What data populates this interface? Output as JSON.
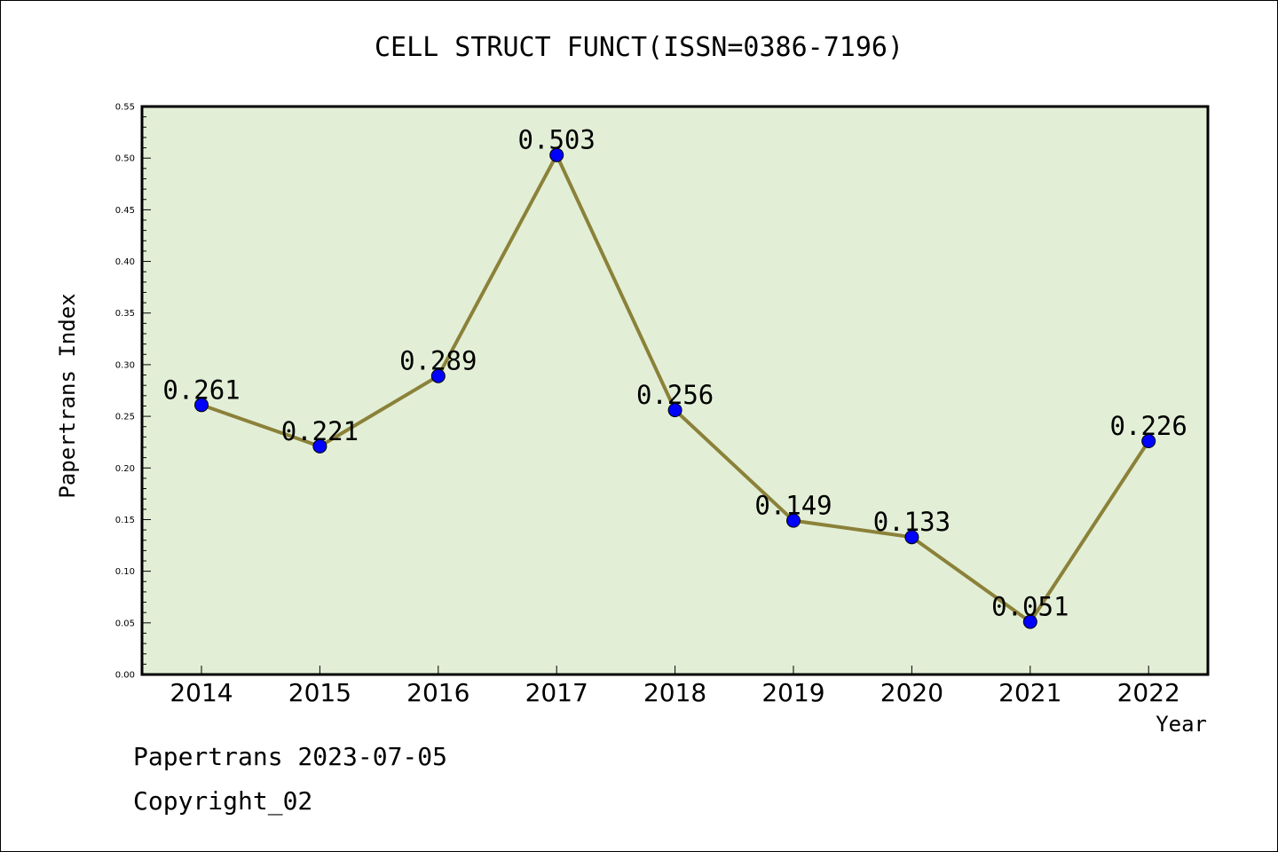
{
  "chart_data": {
    "type": "line",
    "title": "CELL STRUCT FUNCT(ISSN=0386-7196)",
    "xlabel": "Year",
    "ylabel": "Papertrans Index",
    "categories": [
      "2014",
      "2015",
      "2016",
      "2017",
      "2018",
      "2019",
      "2020",
      "2021",
      "2022"
    ],
    "series": [
      {
        "values": [
          0.261,
          0.221,
          0.289,
          0.503,
          0.256,
          0.149,
          0.133,
          0.051,
          0.226
        ]
      }
    ],
    "data_labels": [
      "0.261",
      "0.221",
      "0.289",
      "0.503",
      "0.256",
      "0.149",
      "0.133",
      "0.051",
      "0.226"
    ],
    "ylim": [
      0,
      0.55
    ],
    "yticks": [
      "0.00",
      "0.05",
      "0.10",
      "0.15",
      "0.20",
      "0.25",
      "0.30",
      "0.35",
      "0.40",
      "0.45",
      "0.50",
      "0.55"
    ],
    "grid": false,
    "colors": {
      "plot_background": "#e2efd6",
      "line": "#8b8139",
      "marker": "#0000ff"
    }
  },
  "footer": {
    "line1": "Papertrans 2023-07-05",
    "line2": "Copyright_02"
  }
}
